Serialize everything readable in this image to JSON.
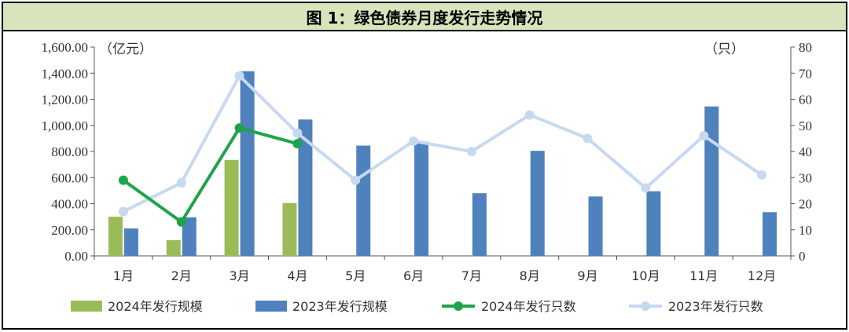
{
  "title": "图 1：绿色债券月度发行走势情况",
  "chart_data": {
    "type": "bar",
    "categories": [
      "1月",
      "2月",
      "3月",
      "4月",
      "5月",
      "6月",
      "7月",
      "8月",
      "9月",
      "10月",
      "11月",
      "12月"
    ],
    "left_axis": {
      "unit": "（亿元）",
      "ylim": [
        0,
        1600
      ],
      "ticks": [
        "0.00",
        "200.00",
        "400.00",
        "600.00",
        "800.00",
        "1,000.00",
        "1,200.00",
        "1,400.00",
        "1,600.00"
      ]
    },
    "right_axis": {
      "unit": "（只）",
      "ylim": [
        0,
        80
      ],
      "ticks": [
        "0",
        "10",
        "20",
        "30",
        "40",
        "50",
        "60",
        "70",
        "80"
      ]
    },
    "series": [
      {
        "name": "2024年发行规模",
        "kind": "bar",
        "axis": "left",
        "color": "#9bbb59",
        "values": [
          300,
          120,
          735,
          405,
          null,
          null,
          null,
          null,
          null,
          null,
          null,
          null
        ]
      },
      {
        "name": "2023年发行规模",
        "kind": "bar",
        "axis": "left",
        "color": "#4f81bd",
        "values": [
          210,
          295,
          1415,
          1045,
          845,
          875,
          480,
          805,
          455,
          495,
          1145,
          335
        ]
      },
      {
        "name": "2024年发行只数",
        "kind": "line",
        "axis": "right",
        "color": "#1fa34a",
        "values": [
          29,
          13,
          49,
          43,
          null,
          null,
          null,
          null,
          null,
          null,
          null,
          null
        ]
      },
      {
        "name": "2023年发行只数",
        "kind": "line",
        "axis": "right",
        "color": "#c6d9f0",
        "values": [
          17,
          28,
          69,
          47,
          29,
          44,
          40,
          54,
          45,
          26,
          46,
          31
        ]
      }
    ],
    "grid": false,
    "legend_position": "bottom"
  }
}
